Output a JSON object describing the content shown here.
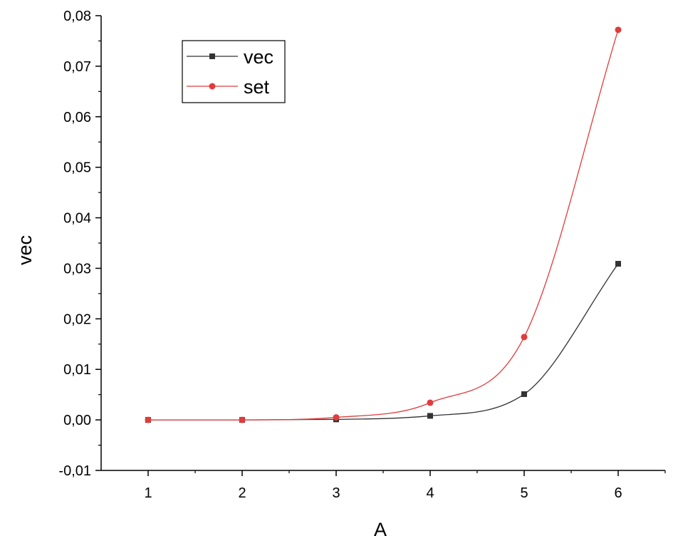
{
  "chart_data": {
    "type": "line",
    "xlabel": "A",
    "ylabel": "vec",
    "xlim": [
      0.5,
      6.5
    ],
    "ylim": [
      -0.01,
      0.08
    ],
    "x_ticks": [
      1,
      2,
      3,
      4,
      5,
      6
    ],
    "x_tick_labels": [
      "1",
      "2",
      "3",
      "4",
      "5",
      "6"
    ],
    "y_ticks": [
      -0.01,
      0.0,
      0.01,
      0.02,
      0.03,
      0.04,
      0.05,
      0.06,
      0.07,
      0.08
    ],
    "y_tick_labels": [
      "-0,01",
      "0,00",
      "0,01",
      "0,02",
      "0,03",
      "0,04",
      "0,05",
      "0,06",
      "0,07",
      "0,08"
    ],
    "x": [
      1,
      2,
      3,
      4,
      5,
      6
    ],
    "series": [
      {
        "name": "vec",
        "color": "#333333",
        "marker": "square",
        "values": [
          0.0,
          0.0,
          0.0001,
          0.0008,
          0.0051,
          0.0309
        ]
      },
      {
        "name": "set",
        "color": "#e03c3c",
        "marker": "circle",
        "values": [
          0.0,
          0.0,
          0.0005,
          0.0034,
          0.0164,
          0.0772
        ]
      }
    ],
    "grid": false,
    "legend_position": "top-left",
    "smooth": true
  }
}
